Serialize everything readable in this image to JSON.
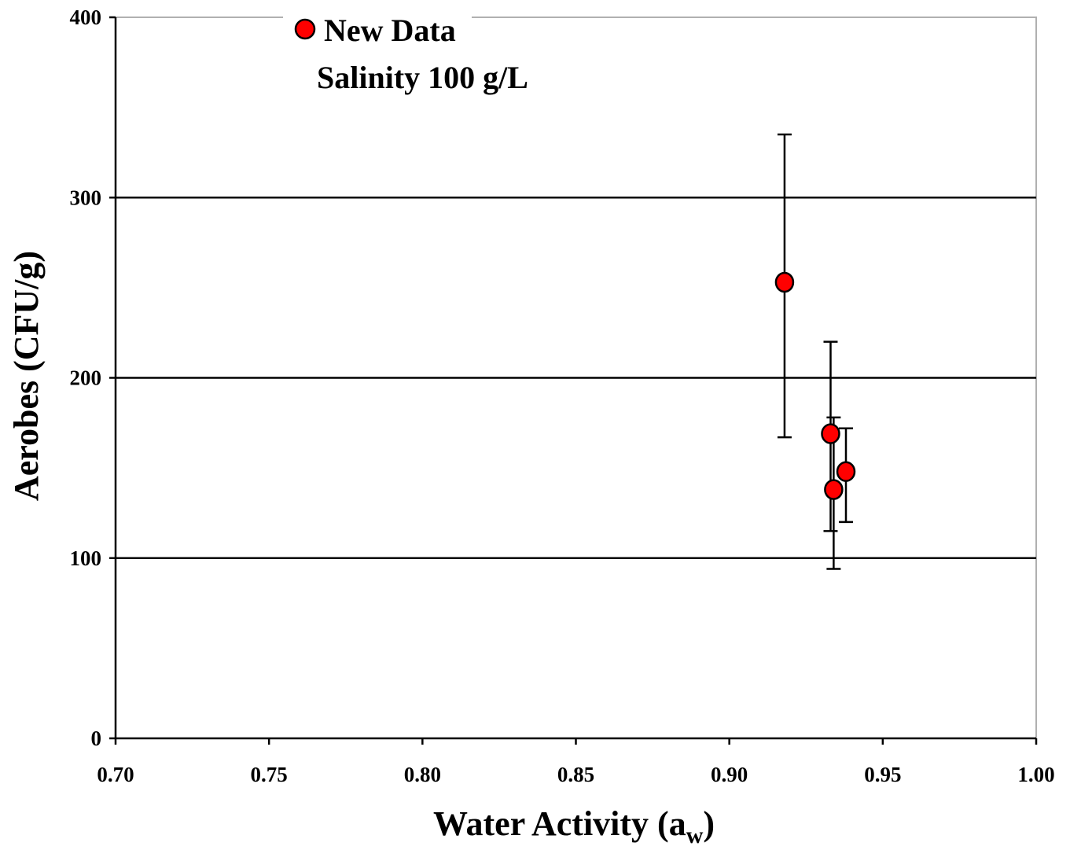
{
  "chart_data": {
    "type": "scatter",
    "title": "",
    "xlabel": "Water Activity (a",
    "xlabel_sub": "w",
    "xlabel_close": ")",
    "ylabel": "Aerobes (CFU/g)",
    "xlim": [
      0.7,
      1.0
    ],
    "ylim": [
      0,
      400
    ],
    "x_ticks": [
      0.7,
      0.75,
      0.8,
      0.85,
      0.9,
      0.95,
      1.0
    ],
    "x_tick_labels": [
      "0.70",
      "0.75",
      "0.80",
      "0.85",
      "0.90",
      "0.95",
      "1.00"
    ],
    "y_ticks": [
      0,
      100,
      200,
      300,
      400
    ],
    "y_tick_labels": [
      "0",
      "100",
      "200",
      "300",
      "400"
    ],
    "grid": "horizontal major",
    "legend_position": "top-left",
    "legend": {
      "entry": "New Data",
      "note": "Salinity 100 g/L"
    },
    "colors": {
      "marker_fill": "#ff0000",
      "marker_edge": "#000000",
      "gridline": "#000000",
      "frame": "#b0b0b0"
    },
    "series": [
      {
        "name": "New Data",
        "points": [
          {
            "x": 0.918,
            "y": 253,
            "y_low": 167,
            "y_high": 335
          },
          {
            "x": 0.933,
            "y": 169,
            "y_low": 115,
            "y_high": 220
          },
          {
            "x": 0.934,
            "y": 138,
            "y_low": 94,
            "y_high": 178
          },
          {
            "x": 0.938,
            "y": 148,
            "y_low": 120,
            "y_high": 172
          }
        ]
      }
    ]
  }
}
